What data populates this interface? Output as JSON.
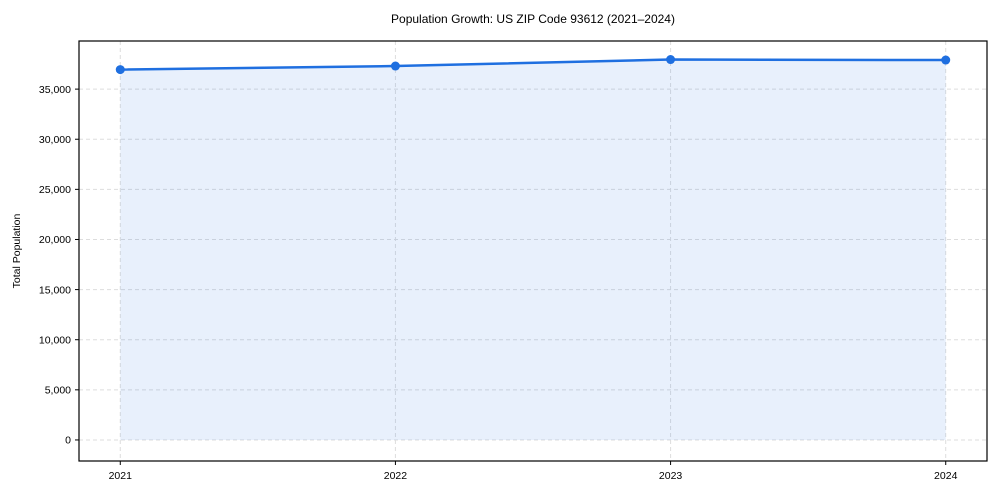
{
  "figure": {
    "title": "Population Growth: US ZIP Code 93612 (2021–2024)",
    "y_axis_label": "Total Population"
  },
  "chart_data": {
    "type": "line",
    "title": "Population Growth: US ZIP Code 93612 (2021–2024)",
    "xlabel": "",
    "ylabel": "Total Population",
    "x": [
      2021,
      2022,
      2023,
      2024
    ],
    "series": [
      {
        "name": "Total Population",
        "values": [
          36950,
          37300,
          37950,
          37900
        ]
      }
    ],
    "x_tick_labels": [
      "2021",
      "2022",
      "2023",
      "2024"
    ],
    "y_ticks": [
      0,
      5000,
      10000,
      15000,
      20000,
      25000,
      30000,
      35000
    ],
    "y_tick_labels": [
      "0",
      "5,000",
      "10,000",
      "15,000",
      "20,000",
      "25,000",
      "30,000",
      "35,000"
    ],
    "xlim": [
      2020.85,
      2024.15
    ],
    "ylim": [
      -2100,
      39800
    ],
    "grid": true,
    "grid_style": "dashed",
    "legend": false,
    "area_fill": true,
    "markers": true,
    "colors": {
      "line": "#1f6fe0",
      "marker": "#1f6fe0",
      "fill": "#1f6fe0",
      "fill_opacity": 0.1,
      "grid": "#dddddd",
      "spine": "#000000",
      "text": "#000000",
      "background": "#ffffff"
    }
  }
}
